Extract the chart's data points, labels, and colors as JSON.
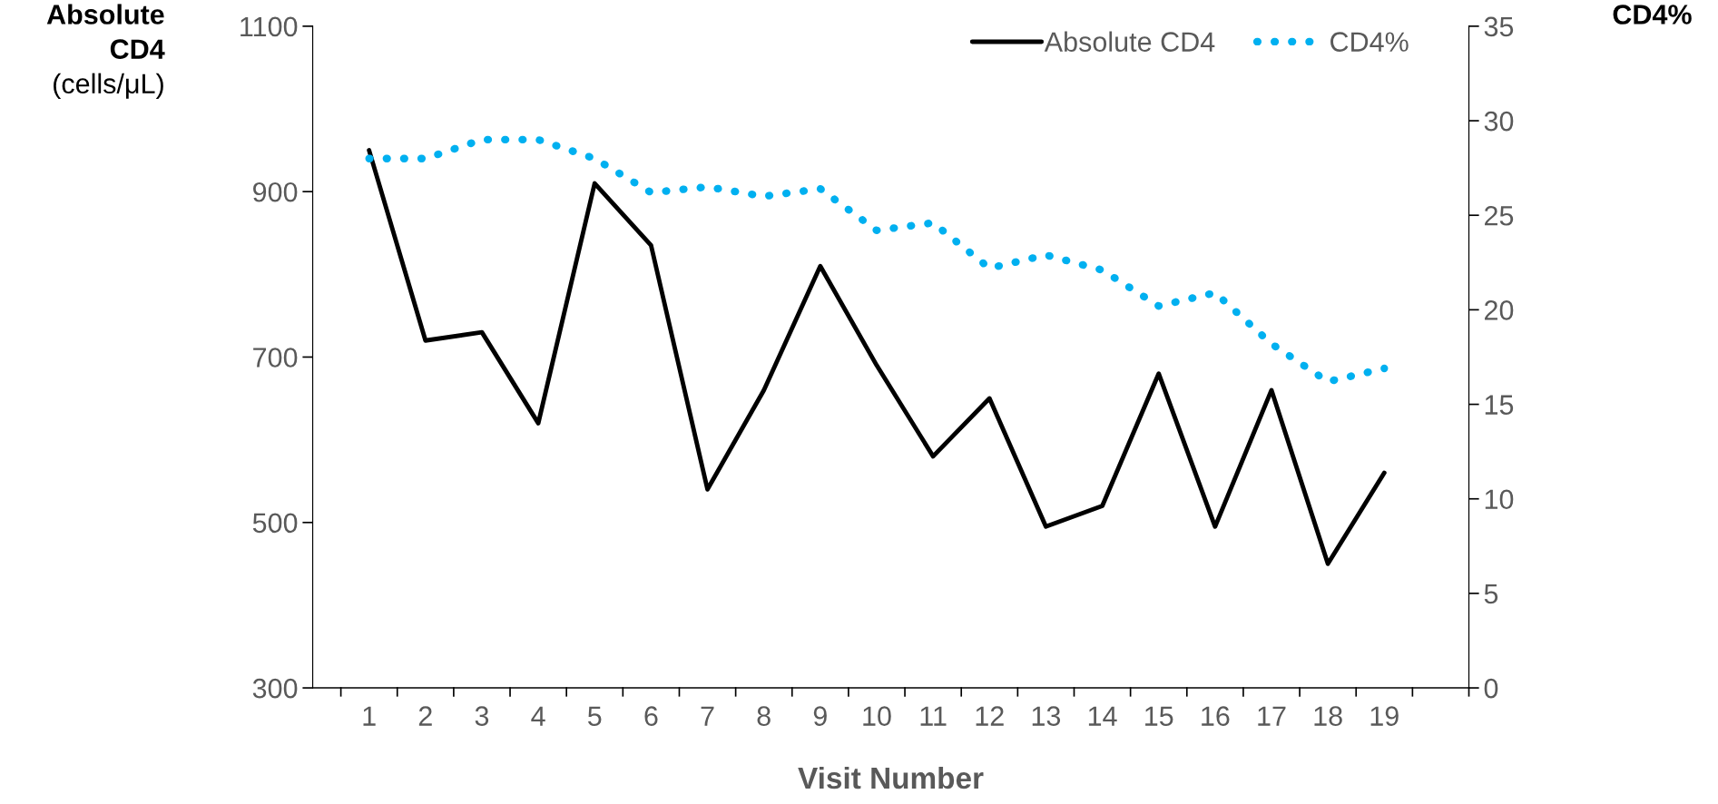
{
  "chart_data": {
    "type": "line",
    "xlabel": "Visit Number",
    "ylabel": "Absolute\nCD4\n(cells/μL)",
    "y2label": "CD4%",
    "categories": [
      "1",
      "2",
      "3",
      "4",
      "5",
      "6",
      "7",
      "8",
      "9",
      "10",
      "11",
      "12",
      "13",
      "14",
      "15",
      "16",
      "17",
      "18",
      "19"
    ],
    "series": [
      {
        "name": "Absolute CD4",
        "color": "#000000",
        "line_style": "solid",
        "values": [
          950,
          720,
          730,
          620,
          910,
          835,
          540,
          660,
          810,
          690,
          580,
          650,
          495,
          520,
          680,
          495,
          660,
          450,
          560
        ]
      },
      {
        "name": "CD4%",
        "color": "#00b0f0",
        "line_style": "dotted",
        "axis": "y2",
        "values": [
          28,
          28,
          29,
          29,
          28,
          26.2,
          26.5,
          26,
          26.4,
          24.2,
          24.6,
          22.2,
          22.9,
          22.1,
          20.2,
          20.9,
          18.2,
          16.2,
          16.9
        ]
      }
    ],
    "ylim": [
      300,
      1100
    ],
    "yticks": [
      300,
      500,
      700,
      900,
      1100
    ],
    "y2lim": [
      0,
      35
    ],
    "y2ticks": [
      0,
      5,
      10,
      15,
      20,
      25,
      30,
      35
    ],
    "grid": false,
    "legend": "top right",
    "marker": "none"
  }
}
